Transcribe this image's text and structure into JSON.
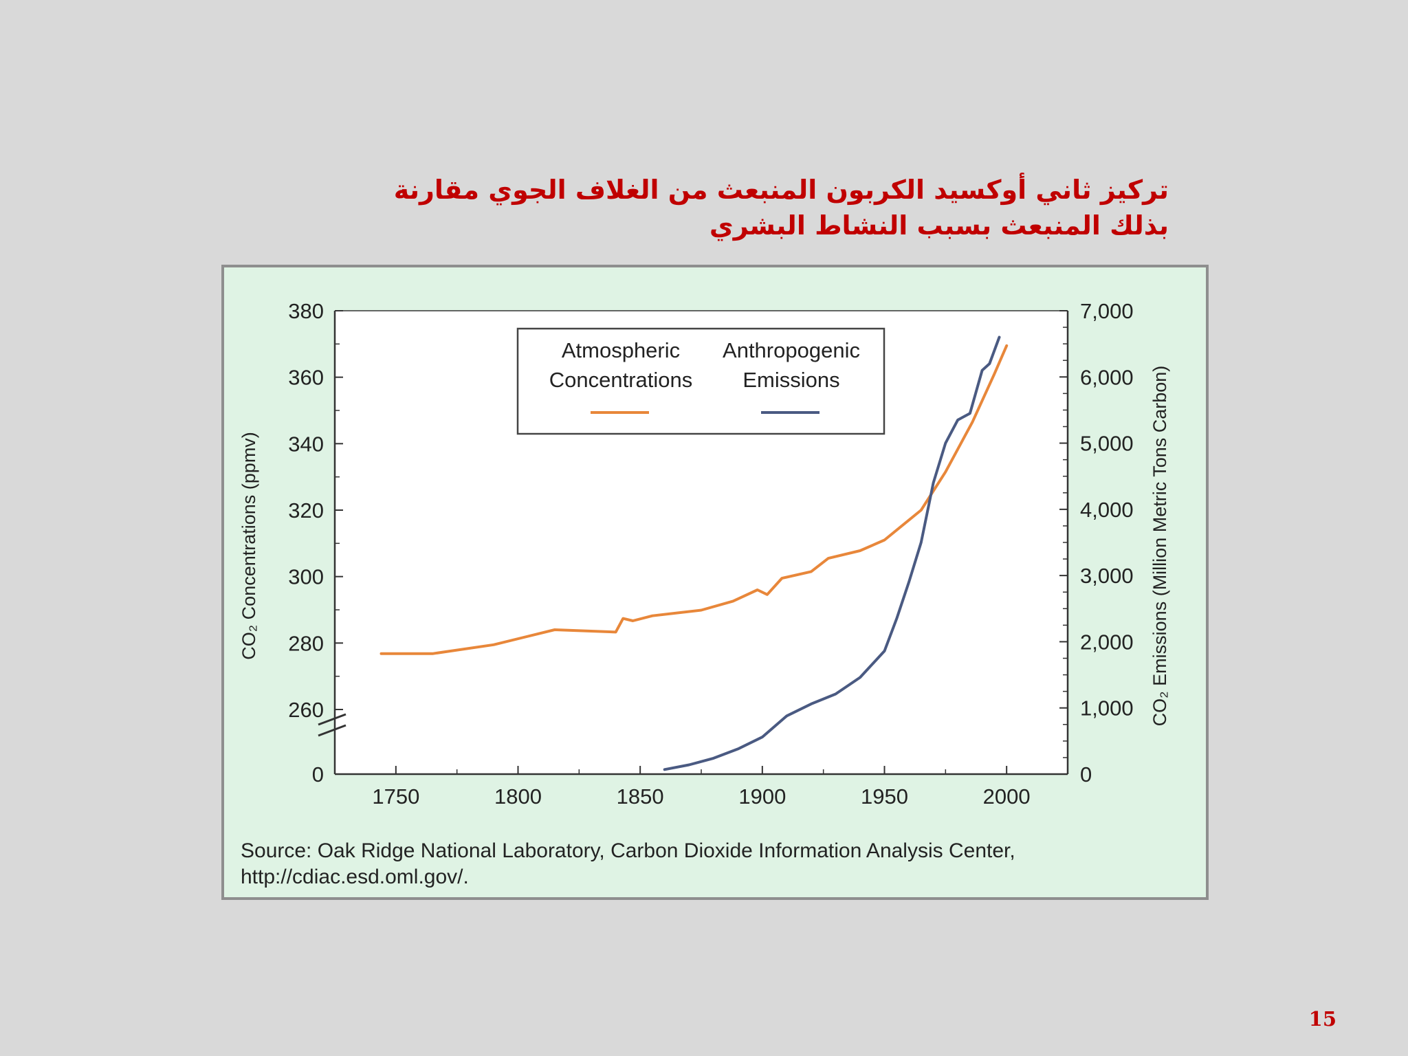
{
  "slide": {
    "title_line1": "تركيز ثاني أوكسيد الكربون المنبعث من الغلاف الجوي مقارنة",
    "title_line2": "بذلك المنبعث بسبب النشاط البشري",
    "page_number": "15",
    "source_line1": "Source: Oak Ridge National Laboratory, Carbon Dioxide Information Analysis Center,",
    "source_line2": "http://cdiac.esd.oml.gov/."
  },
  "chart_data": {
    "type": "line",
    "title": "",
    "xlabel": "",
    "ylabel_left": "CO₂ Concentrations (ppmv)",
    "ylabel_right": "CO₂ Emissions (Million Metric Tons Carbon)",
    "x_ticks": [
      "1750",
      "1800",
      "1850",
      "1900",
      "1950",
      "2000"
    ],
    "y_left_ticks": [
      "380",
      "360",
      "340",
      "320",
      "300",
      "280",
      "260",
      "0"
    ],
    "y_right_ticks": [
      "7,000",
      "6,000",
      "5,000",
      "4,000",
      "3,000",
      "2,000",
      "1,000",
      "0"
    ],
    "xlim": [
      1725,
      2025
    ],
    "ylim_left": [
      0,
      380
    ],
    "ylim_right": [
      0,
      7000
    ],
    "left_axis_break": "between 0 and 260",
    "grid": false,
    "legend": {
      "placement": "top-center",
      "entries": [
        {
          "line1": "Atmospheric",
          "line2": "Concentrations",
          "color": "#e8873a"
        },
        {
          "line1": "Anthropogenic",
          "line2": "Emissions",
          "color": "#4a5a82"
        }
      ]
    },
    "series": [
      {
        "name": "Atmospheric Concentrations",
        "axis": "left",
        "color": "#e8873a",
        "x": [
          1744,
          1765,
          1790,
          1815,
          1840,
          1843,
          1847,
          1855,
          1875,
          1888,
          1898,
          1902,
          1908,
          1920,
          1927,
          1940,
          1950,
          1965,
          1975,
          1986,
          1995,
          2000
        ],
        "y": [
          276.8,
          276.8,
          279.5,
          284,
          283.3,
          287.4,
          286.7,
          288.2,
          289.9,
          292.6,
          296,
          294.6,
          299.5,
          301.5,
          305.5,
          307.8,
          311,
          320,
          331.5,
          346.5,
          361,
          369.5
        ]
      },
      {
        "name": "Anthropogenic Emissions",
        "axis": "right",
        "color": "#4a5a82",
        "x": [
          1860,
          1870,
          1880,
          1890,
          1900,
          1910,
          1920,
          1930,
          1940,
          1950,
          1955,
          1960,
          1965,
          1970,
          1975,
          1980,
          1985,
          1990,
          1993,
          1997
        ],
        "y": [
          70,
          140,
          240,
          380,
          560,
          880,
          1060,
          1210,
          1460,
          1860,
          2350,
          2900,
          3500,
          4400,
          5000,
          5350,
          5450,
          6100,
          6200,
          6600
        ]
      }
    ]
  }
}
